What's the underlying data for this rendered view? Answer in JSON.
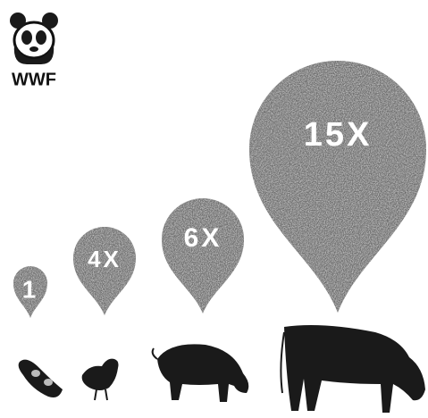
{
  "logo": {
    "text": "WWF"
  },
  "drops": [
    {
      "label": "1"
    },
    {
      "label": "4X"
    },
    {
      "label": "6X"
    },
    {
      "label": "15X"
    }
  ]
}
